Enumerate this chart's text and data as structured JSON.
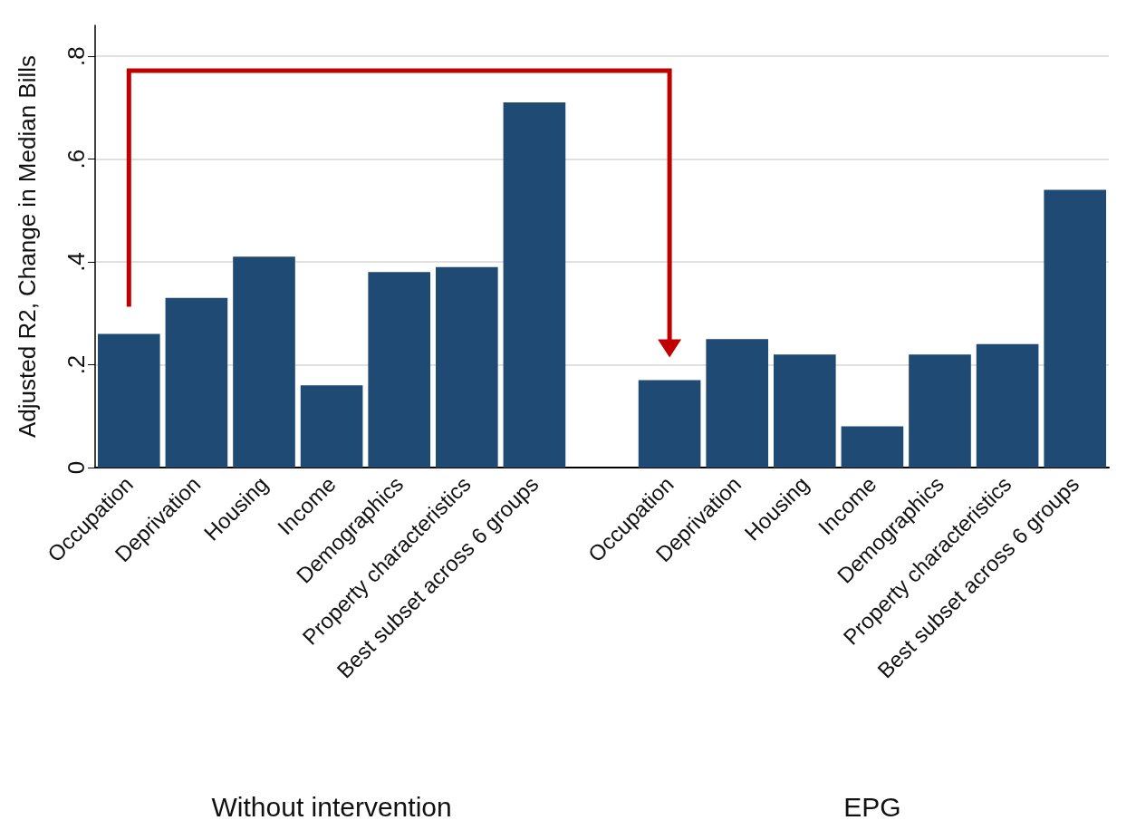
{
  "chart_data": {
    "type": "bar",
    "categories": [
      "Occupation",
      "Deprivation",
      "Housing",
      "Income",
      "Demographics",
      "Property characteristics",
      "Best subset across 6 groups",
      null,
      "Occupation",
      "Deprivation",
      "Housing",
      "Income",
      "Demographics",
      "Property characteristics",
      "Best subset across 6 groups"
    ],
    "values": [
      0.26,
      0.33,
      0.41,
      0.16,
      0.38,
      0.39,
      0.71,
      null,
      0.17,
      0.25,
      0.22,
      0.08,
      0.22,
      0.24,
      0.54
    ],
    "color": "#1f4a73",
    "ylabel": "Adjusted R2, Change in Median Bills",
    "ylim": [
      0,
      0.86
    ],
    "yticks": [
      0,
      {
        "value": 0.2,
        "label": ".2"
      },
      {
        "value": 0.4,
        "label": ".4"
      },
      {
        "value": 0.6,
        "label": ".6"
      },
      {
        "value": 0.8,
        "label": ".8"
      }
    ],
    "grid": "y",
    "annotations": [
      "Without intervention",
      "EPG"
    ]
  }
}
